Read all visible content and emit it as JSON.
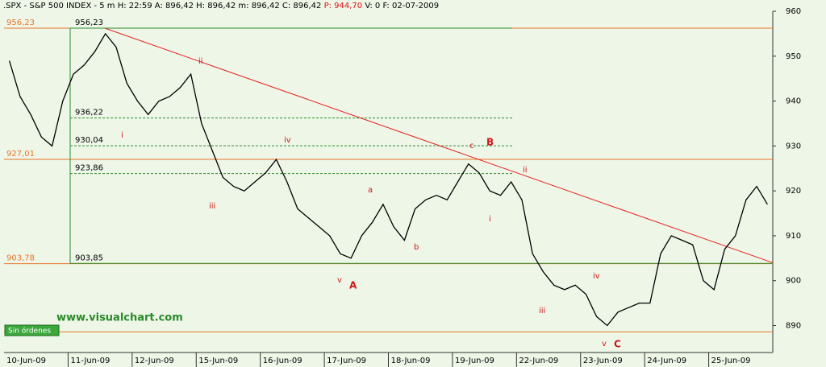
{
  "chart_data": {
    "type": "line",
    "header": [
      ".SPX - S&P 500 INDEX - 5 m H: 22:59 A: 896,42 H: 896,42 m: 896,42 C: 896,42",
      "P: 944,70",
      "V: 0 F: 02-07-2009"
    ],
    "categories": [
      null,
      null,
      "10-Jun-09",
      null,
      null,
      null,
      null,
      null,
      "11-Jun-09",
      null,
      null,
      null,
      null,
      null,
      "12-Jun-09",
      null,
      null,
      null,
      null,
      null,
      "15-Jun-09",
      null,
      null,
      null,
      null,
      null,
      "16-Jun-09",
      null,
      null,
      null,
      null,
      null,
      "17-Jun-09",
      null,
      null,
      null,
      null,
      null,
      "18-Jun-09",
      null,
      null,
      null,
      null,
      null,
      "19-Jun-09",
      null,
      null,
      null,
      null,
      null,
      "22-Jun-09",
      null,
      null,
      null,
      null,
      null,
      "23-Jun-09",
      null,
      null,
      null,
      null,
      null,
      "24-Jun-09",
      null,
      null,
      null,
      null,
      null,
      "25-Jun-09",
      null,
      null,
      null
    ],
    "series": [
      {
        "name": ".SPX",
        "color": "#000000",
        "values": [
          949,
          941,
          937,
          932,
          930,
          940,
          946,
          948,
          951,
          955,
          952,
          944,
          940,
          937,
          940,
          941,
          943,
          946,
          935,
          929,
          923,
          921,
          920,
          922,
          924,
          927,
          922,
          916,
          914,
          912,
          910,
          906,
          905,
          910,
          913,
          917,
          912,
          909,
          916,
          918,
          919,
          918,
          922,
          926,
          924,
          920,
          919,
          922,
          918,
          906,
          902,
          899,
          898,
          899,
          897,
          892,
          890,
          893,
          894,
          895,
          895,
          906,
          910,
          909,
          908,
          900,
          898,
          907,
          910,
          918,
          921,
          917
        ]
      }
    ],
    "ylim": [
      884,
      960
    ],
    "yticks": [
      890,
      900,
      910,
      920,
      930,
      940,
      950,
      960
    ],
    "levels": [
      {
        "value": 956.23,
        "label": "956,23"
      },
      {
        "value": 927.01,
        "label": "927,01"
      },
      {
        "value": 903.78,
        "label": "903,78"
      }
    ],
    "bottom_level": 888.6,
    "level_color": "#e8742a",
    "fib_levels": [
      {
        "value": 956.23,
        "label": "956,23"
      },
      {
        "value": 936.22,
        "label": "936,22"
      },
      {
        "value": 930.04,
        "label": "930,04"
      },
      {
        "value": 923.86,
        "label": "923,86"
      },
      {
        "value": 903.85,
        "label": "903,85"
      }
    ],
    "fib_color": "#2e8b2e",
    "trendline": [
      956.23,
      904
    ],
    "trend_color": "#e82020",
    "annotations": [
      "i",
      "ii",
      "iii",
      "iv",
      "v",
      "A",
      "a",
      "b",
      "c",
      "B",
      "ii",
      "i",
      "iii",
      "iv",
      "v",
      "C"
    ],
    "annotation_color": "#d01818",
    "watermark": "www.visualchart.com",
    "button": "Sin órdenes"
  }
}
